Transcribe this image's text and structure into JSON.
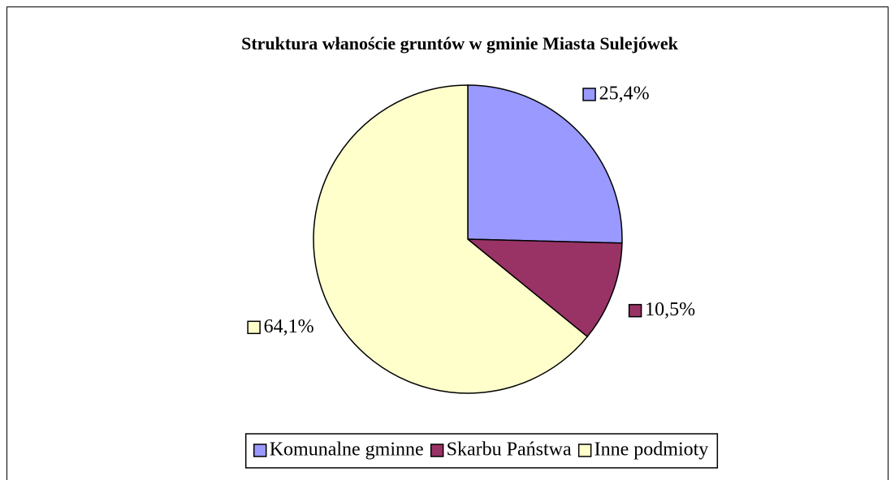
{
  "chart_data": {
    "type": "pie",
    "title": "Struktura włanoście gruntów w gminie Miasta Sulejówek",
    "categories": [
      "Komunalne gminne",
      "Skarbu Państwa",
      "Inne podmioty"
    ],
    "values": [
      25.4,
      10.5,
      64.1
    ],
    "value_labels": [
      "25,4%",
      "10,5%",
      "64,1%"
    ],
    "colors": [
      "#9999ff",
      "#993366",
      "#ffffcc"
    ],
    "legend": "bottom"
  }
}
